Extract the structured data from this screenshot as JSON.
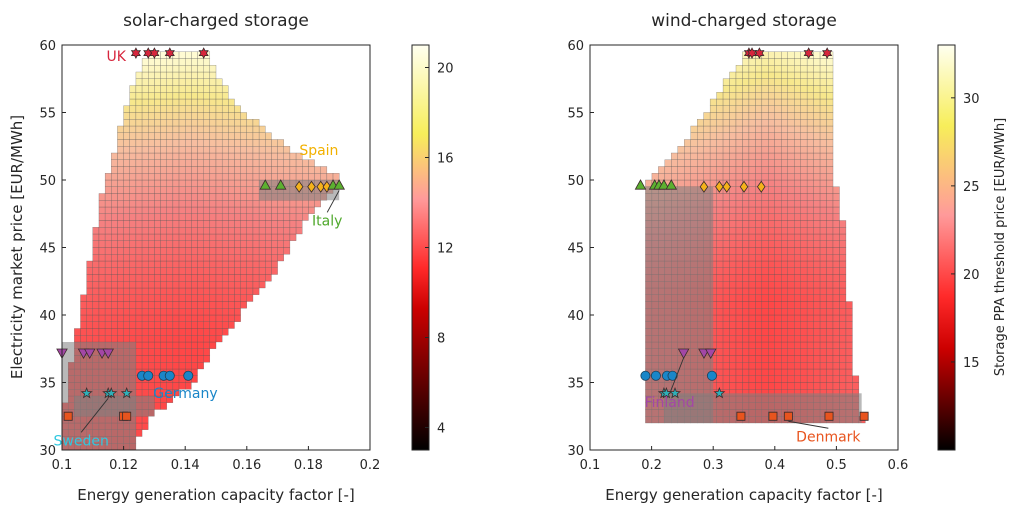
{
  "chart_data": [
    {
      "type": "heatmap",
      "title": "solar-charged storage",
      "xlabel": "Energy generation capacity factor [-]",
      "ylabel": "Electricity market price [EUR/MWh]",
      "xlim": [
        0.1,
        0.2
      ],
      "ylim": [
        30,
        60
      ],
      "xticks": [
        "0.1",
        "0.12",
        "0.14",
        "0.16",
        "0.18",
        "0.2"
      ],
      "yticks": [
        "30",
        "35",
        "40",
        "45",
        "50",
        "55",
        "60"
      ],
      "colorbar": {
        "label": "",
        "min": 3,
        "max": 21,
        "ticks": [
          "4",
          "8",
          "12",
          "16",
          "20"
        ]
      },
      "grid_region": {
        "x_step": 0.002,
        "y_step": 0.5,
        "rows": [
          [
            30.0,
            0.1,
            0.122
          ],
          [
            32.5,
            0.1,
            0.128
          ],
          [
            35.0,
            0.102,
            0.142
          ],
          [
            38.0,
            0.104,
            0.15
          ],
          [
            42.5,
            0.108,
            0.166
          ],
          [
            47.5,
            0.112,
            0.18
          ],
          [
            50.0,
            0.114,
            0.19
          ],
          [
            52.5,
            0.118,
            0.172
          ],
          [
            55.0,
            0.12,
            0.158
          ],
          [
            57.5,
            0.124,
            0.15
          ],
          [
            59.5,
            0.128,
            0.146
          ]
        ]
      },
      "countries": [
        {
          "name": "UK",
          "marker": "hexagram",
          "color": "#d7263d",
          "label_color": "#d7263d",
          "points": [
            [
              0.124,
              59.4
            ],
            [
              0.128,
              59.4
            ],
            [
              0.13,
              59.4
            ],
            [
              0.135,
              59.4
            ],
            [
              0.146,
              59.4
            ]
          ]
        },
        {
          "name": "Spain",
          "marker": "diamond",
          "color": "#f5b21b",
          "label_color": "#f2b100",
          "points": [
            [
              0.177,
              49.5
            ],
            [
              0.181,
              49.5
            ],
            [
              0.184,
              49.5
            ],
            [
              0.186,
              49.5
            ]
          ]
        },
        {
          "name": "Italy",
          "marker": "triangle",
          "color": "#5cb030",
          "label_color": "#4fa82c",
          "points": [
            [
              0.166,
              49.6
            ],
            [
              0.171,
              49.6
            ],
            [
              0.188,
              49.6
            ],
            [
              0.19,
              49.6
            ]
          ]
        },
        {
          "name": "Germany",
          "marker": "circle",
          "color": "#1a86c8",
          "label_color": "#1a86c8",
          "points": [
            [
              0.126,
              35.5
            ],
            [
              0.128,
              35.5
            ],
            [
              0.133,
              35.5
            ],
            [
              0.135,
              35.5
            ],
            [
              0.141,
              35.5
            ]
          ]
        },
        {
          "name": "Sweden",
          "marker": "pentagram",
          "color": "#2fb0b8",
          "label_color": "#2fc8e0",
          "points": [
            [
              0.108,
              34.2
            ],
            [
              0.115,
              34.2
            ],
            [
              0.116,
              34.2
            ],
            [
              0.121,
              34.2
            ]
          ]
        },
        {
          "name": "",
          "marker": "triangle-down",
          "color": "#a347a6",
          "label_color": "#a347a6",
          "points": [
            [
              0.1,
              37.2
            ],
            [
              0.107,
              37.2
            ],
            [
              0.109,
              37.2
            ],
            [
              0.113,
              37.2
            ],
            [
              0.115,
              37.2
            ]
          ]
        },
        {
          "name": "",
          "marker": "square",
          "color": "#e8541e",
          "label_color": "#e8541e",
          "points": [
            [
              0.102,
              32.5
            ],
            [
              0.12,
              32.5
            ],
            [
              0.121,
              32.5
            ]
          ]
        }
      ]
    },
    {
      "type": "heatmap",
      "title": "wind-charged storage",
      "xlabel": "Energy generation capacity factor [-]",
      "ylabel": "",
      "xlim": [
        0.1,
        0.6
      ],
      "ylim": [
        30,
        60
      ],
      "xticks": [
        "0.1",
        "0.2",
        "0.3",
        "0.4",
        "0.5",
        "0.6"
      ],
      "yticks": [
        "30",
        "35",
        "40",
        "45",
        "50",
        "55",
        "60"
      ],
      "colorbar": {
        "label": "Storage PPA threshold price [EUR/MWh]",
        "min": 10,
        "max": 33,
        "ticks": [
          "15",
          "20",
          "25",
          "30"
        ]
      },
      "grid_region": {
        "x_step": 0.0105,
        "y_step": 0.5,
        "rows": [
          [
            32.0,
            0.19,
            0.541
          ],
          [
            33.5,
            0.19,
            0.53
          ],
          [
            36.0,
            0.19,
            0.525
          ],
          [
            42.0,
            0.19,
            0.514
          ],
          [
            48.0,
            0.19,
            0.503
          ],
          [
            49.5,
            0.19,
            0.493
          ],
          [
            52.5,
            0.245,
            0.493
          ],
          [
            55.0,
            0.29,
            0.485
          ],
          [
            57.5,
            0.32,
            0.485
          ],
          [
            59.5,
            0.356,
            0.485
          ]
        ]
      },
      "countries": [
        {
          "name": "",
          "marker": "hexagram",
          "color": "#d7263d",
          "label_color": "#d7263d",
          "points": [
            [
              0.358,
              59.4
            ],
            [
              0.363,
              59.4
            ],
            [
              0.375,
              59.4
            ],
            [
              0.455,
              59.4
            ],
            [
              0.485,
              59.4
            ]
          ]
        },
        {
          "name": "",
          "marker": "diamond",
          "color": "#f5b21b",
          "label_color": "#f2b100",
          "points": [
            [
              0.285,
              49.5
            ],
            [
              0.31,
              49.5
            ],
            [
              0.322,
              49.5
            ],
            [
              0.35,
              49.5
            ],
            [
              0.378,
              49.5
            ]
          ]
        },
        {
          "name": "",
          "marker": "triangle",
          "color": "#5cb030",
          "label_color": "#4fa82c",
          "points": [
            [
              0.182,
              49.6
            ],
            [
              0.205,
              49.6
            ],
            [
              0.212,
              49.6
            ],
            [
              0.22,
              49.6
            ],
            [
              0.232,
              49.6
            ]
          ]
        },
        {
          "name": "",
          "marker": "circle",
          "color": "#1a86c8",
          "label_color": "#1a86c8",
          "points": [
            [
              0.19,
              35.5
            ],
            [
              0.207,
              35.5
            ],
            [
              0.225,
              35.5
            ],
            [
              0.234,
              35.5
            ],
            [
              0.298,
              35.5
            ]
          ]
        },
        {
          "name": "",
          "marker": "pentagram",
          "color": "#2fb0b8",
          "label_color": "#2fc8e0",
          "points": [
            [
              0.22,
              34.2
            ],
            [
              0.224,
              34.2
            ],
            [
              0.238,
              34.2
            ],
            [
              0.31,
              34.2
            ]
          ]
        },
        {
          "name": "Finland",
          "marker": "triangle-down",
          "color": "#a347a6",
          "label_color": "#a347a6",
          "points": [
            [
              0.252,
              37.2
            ],
            [
              0.285,
              37.2
            ],
            [
              0.296,
              37.2
            ]
          ]
        },
        {
          "name": "Denmark",
          "marker": "square",
          "color": "#e8541e",
          "label_color": "#e8541e",
          "points": [
            [
              0.345,
              32.5
            ],
            [
              0.397,
              32.5
            ],
            [
              0.422,
              32.5
            ],
            [
              0.488,
              32.5
            ],
            [
              0.545,
              32.5
            ]
          ]
        }
      ]
    }
  ]
}
